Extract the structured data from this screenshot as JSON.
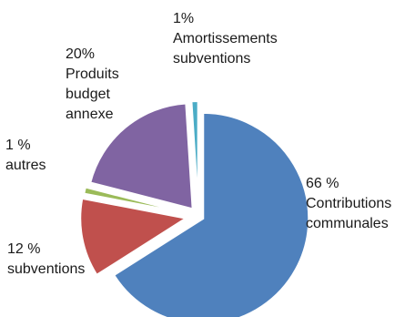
{
  "chart_data": {
    "type": "pie",
    "title": "",
    "exploded": true,
    "slices": [
      {
        "value": 66,
        "color": "#4F81BD",
        "label_lines": [
          "66 %",
          "Contributions",
          "communales"
        ]
      },
      {
        "value": 12,
        "color": "#C0504D",
        "label_lines": [
          "12 %",
          "subventions"
        ]
      },
      {
        "value": 1,
        "color": "#9BBB59",
        "label_lines": [
          "1 %",
          "autres"
        ]
      },
      {
        "value": 20,
        "color": "#8064A2",
        "label_lines": [
          "20%",
          "Produits",
          "budget",
          "annexe"
        ]
      },
      {
        "value": 1,
        "color": "#4BACC6",
        "label_lines": [
          "1%",
          "Amortissements",
          "subventions"
        ]
      }
    ]
  }
}
